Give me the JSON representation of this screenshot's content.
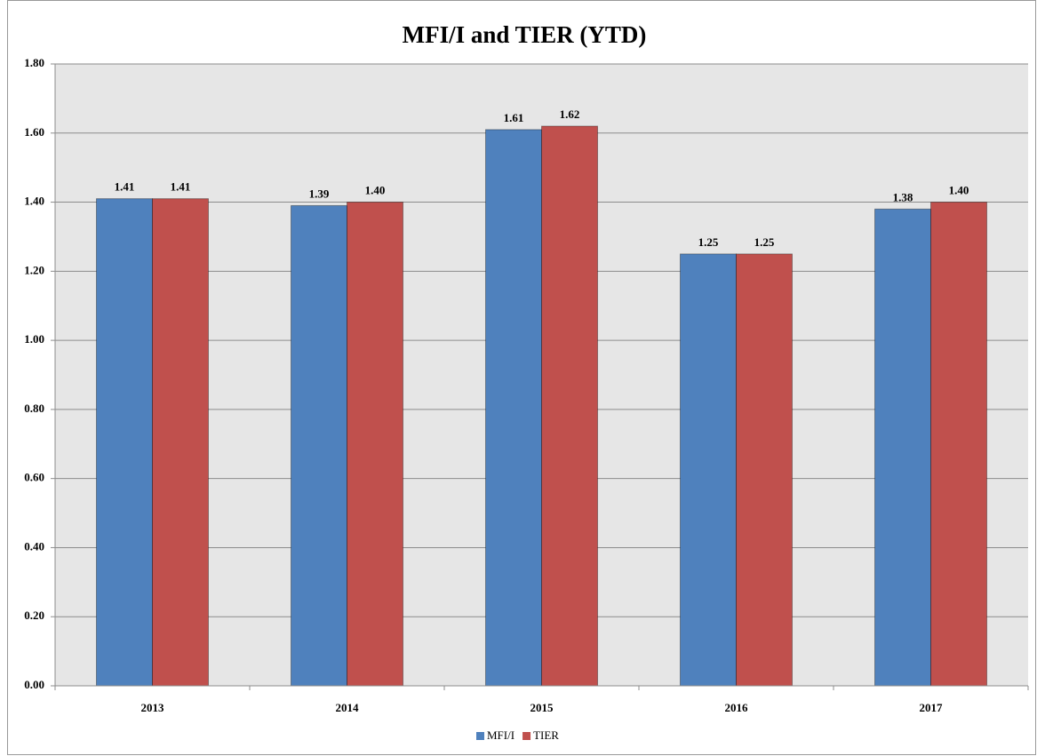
{
  "chart_data": {
    "type": "bar",
    "title": "MFI/I and TIER (YTD)",
    "categories": [
      "2013",
      "2014",
      "2015",
      "2016",
      "2017"
    ],
    "series": [
      {
        "name": "MFI/I",
        "color": "#4f81bd",
        "values": [
          1.41,
          1.39,
          1.61,
          1.25,
          1.38
        ],
        "value_labels": [
          "1.41",
          "1.39",
          "1.61",
          "1.25",
          "1.38"
        ]
      },
      {
        "name": "TIER",
        "color": "#c0504d",
        "values": [
          1.41,
          1.4,
          1.62,
          1.25,
          1.4
        ],
        "value_labels": [
          "1.41",
          "1.40",
          "1.62",
          "1.25",
          "1.40"
        ]
      }
    ],
    "ylim": [
      0,
      1.8
    ],
    "yticks": [
      {
        "value": 0,
        "label": "0.00"
      },
      {
        "value": 0.2,
        "label": "0.20"
      },
      {
        "value": 0.4,
        "label": "0.40"
      },
      {
        "value": 0.6,
        "label": "0.60"
      },
      {
        "value": 0.8,
        "label": "0.80"
      },
      {
        "value": 1,
        "label": "1.00"
      },
      {
        "value": 1.2,
        "label": "1.20"
      },
      {
        "value": 1.4,
        "label": "1.40"
      },
      {
        "value": 1.6,
        "label": "1.60"
      },
      {
        "value": 1.8,
        "label": "1.80"
      }
    ],
    "grid": true,
    "legend": "bottom"
  }
}
